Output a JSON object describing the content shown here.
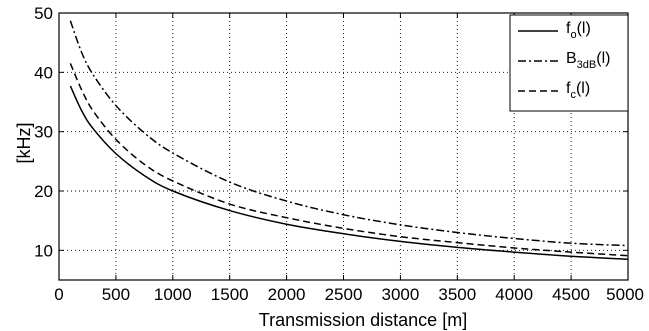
{
  "chart_data": {
    "type": "line",
    "xlabel": "Transmission distance [m]",
    "ylabel": "[kHz]",
    "xlim": [
      0,
      5000
    ],
    "ylim": [
      5,
      50
    ],
    "xticks": [
      0,
      500,
      1000,
      1500,
      2000,
      2500,
      3000,
      3500,
      4000,
      4500,
      5000
    ],
    "yticks": [
      10,
      20,
      30,
      40,
      50
    ],
    "grid": true,
    "legend_position": "top-right",
    "series": [
      {
        "name": "f_o(l)",
        "name_main": "f",
        "name_sub": "o",
        "name_suffix": "(l)",
        "line_style": "solid",
        "x": [
          100,
          200,
          300,
          500,
          750,
          1000,
          1500,
          2000,
          2500,
          3000,
          3500,
          4000,
          4500,
          5000
        ],
        "y": [
          37.7,
          33.5,
          30.5,
          26.3,
          22.6,
          20.0,
          16.7,
          14.4,
          12.8,
          11.5,
          10.5,
          9.7,
          9.0,
          8.5
        ]
      },
      {
        "name": "B_3dB(l)",
        "name_main": "B",
        "name_sub": "3dB",
        "name_suffix": "(l)",
        "line_style": "dashdot",
        "x": [
          100,
          200,
          300,
          500,
          750,
          1000,
          1500,
          2000,
          2500,
          3000,
          3500,
          4000,
          4500,
          5000
        ],
        "y": [
          48.7,
          43.3,
          39.6,
          34.4,
          29.8,
          26.4,
          21.5,
          18.3,
          16.0,
          14.3,
          13.0,
          12.0,
          11.2,
          10.8
        ]
      },
      {
        "name": "f_c(l)",
        "name_main": "f",
        "name_sub": "c",
        "name_suffix": "(l)",
        "line_style": "dashed",
        "x": [
          100,
          200,
          300,
          500,
          750,
          1000,
          1500,
          2000,
          2500,
          3000,
          3500,
          4000,
          4500,
          5000
        ],
        "y": [
          41.5,
          37.0,
          33.5,
          28.7,
          24.5,
          21.7,
          17.8,
          15.5,
          13.7,
          12.3,
          11.3,
          10.4,
          9.7,
          9.1
        ]
      }
    ]
  }
}
